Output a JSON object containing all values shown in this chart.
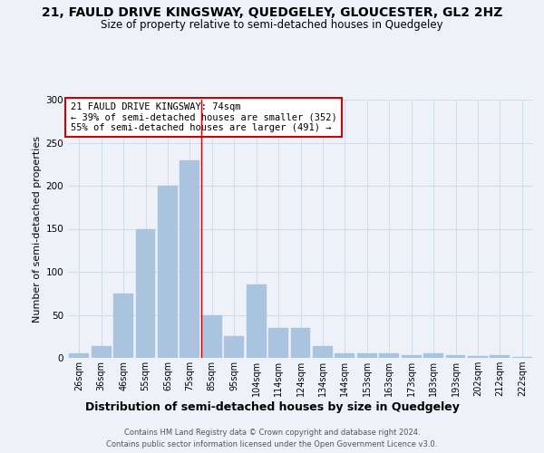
{
  "title1": "21, FAULD DRIVE KINGSWAY, QUEDGELEY, GLOUCESTER, GL2 2HZ",
  "title2": "Size of property relative to semi-detached houses in Quedgeley",
  "xlabel": "Distribution of semi-detached houses by size in Quedgeley",
  "ylabel": "Number of semi-detached properties",
  "categories": [
    "26sqm",
    "36sqm",
    "46sqm",
    "55sqm",
    "65sqm",
    "75sqm",
    "85sqm",
    "95sqm",
    "104sqm",
    "114sqm",
    "124sqm",
    "134sqm",
    "144sqm",
    "153sqm",
    "163sqm",
    "173sqm",
    "183sqm",
    "193sqm",
    "202sqm",
    "212sqm",
    "222sqm"
  ],
  "values": [
    5,
    14,
    75,
    150,
    200,
    230,
    50,
    25,
    85,
    35,
    35,
    14,
    5,
    5,
    5,
    3,
    5,
    3,
    2,
    3,
    1
  ],
  "bar_color": "#aac4e0",
  "bar_edgecolor": "#aac4e0",
  "grid_color": "#d0dce8",
  "background_color": "#eef2f8",
  "red_line_x": 5.5,
  "annotation_title": "21 FAULD DRIVE KINGSWAY: 74sqm",
  "annotation_line1": "← 39% of semi-detached houses are smaller (352)",
  "annotation_line2": "55% of semi-detached houses are larger (491) →",
  "annotation_box_color": "#ffffff",
  "annotation_box_edgecolor": "#cc0000",
  "footer1": "Contains HM Land Registry data © Crown copyright and database right 2024.",
  "footer2": "Contains public sector information licensed under the Open Government Licence v3.0.",
  "ylim": [
    0,
    300
  ],
  "yticks": [
    0,
    50,
    100,
    150,
    200,
    250,
    300
  ],
  "title1_fontsize": 10,
  "title2_fontsize": 8.5,
  "xlabel_fontsize": 9,
  "ylabel_fontsize": 8,
  "ann_fontsize": 7.5,
  "footer_fontsize": 6
}
